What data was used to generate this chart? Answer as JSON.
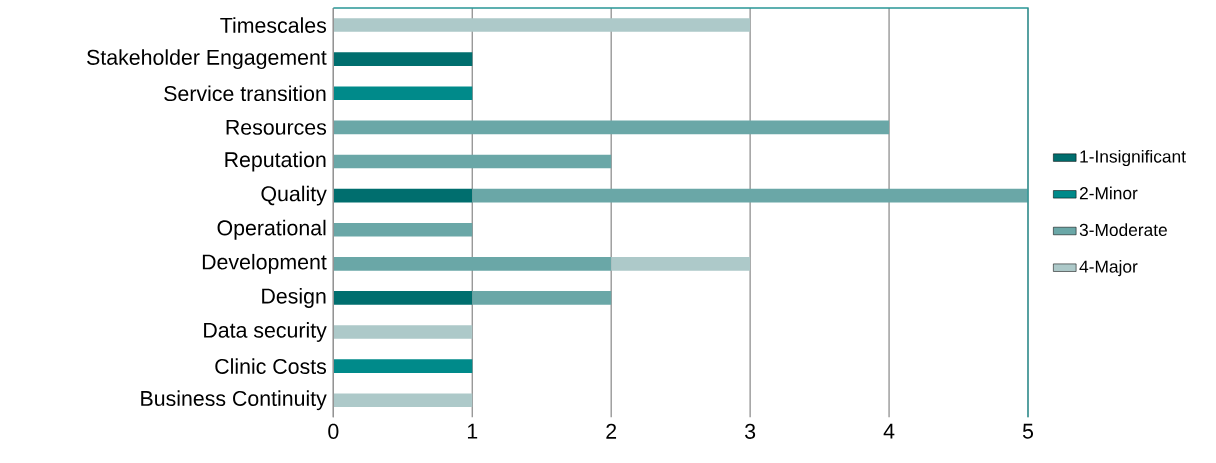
{
  "chart_data": {
    "type": "bar",
    "orientation": "horizontal",
    "stacked": true,
    "categories": [
      "Timescales",
      "Stakeholder Engagement",
      "Service transition",
      "Resources",
      "Reputation",
      "Quality",
      "Operational",
      "Development",
      "Design",
      "Data security",
      "Clinic Costs",
      "Business Continuity"
    ],
    "series": [
      {
        "name": "1-Insignificant",
        "color": "#006e6e",
        "values": [
          null,
          1,
          null,
          null,
          null,
          1,
          null,
          null,
          1,
          null,
          null,
          null
        ]
      },
      {
        "name": "2-Minor",
        "color": "#008a8a",
        "values": [
          null,
          null,
          1,
          null,
          null,
          null,
          null,
          null,
          null,
          null,
          1,
          null
        ]
      },
      {
        "name": "3-Moderate",
        "color": "#6aa7a7",
        "values": [
          null,
          null,
          null,
          4,
          2,
          4,
          1,
          2,
          1,
          null,
          null,
          null
        ]
      },
      {
        "name": "4-Major",
        "color": "#adc9c9",
        "values": [
          3,
          null,
          null,
          null,
          null,
          null,
          null,
          1,
          null,
          1,
          null,
          1
        ]
      }
    ],
    "xlim": [
      0,
      5
    ],
    "xticks": [
      0,
      1,
      2,
      3,
      4,
      5
    ],
    "grid": "x",
    "legend": "right"
  }
}
